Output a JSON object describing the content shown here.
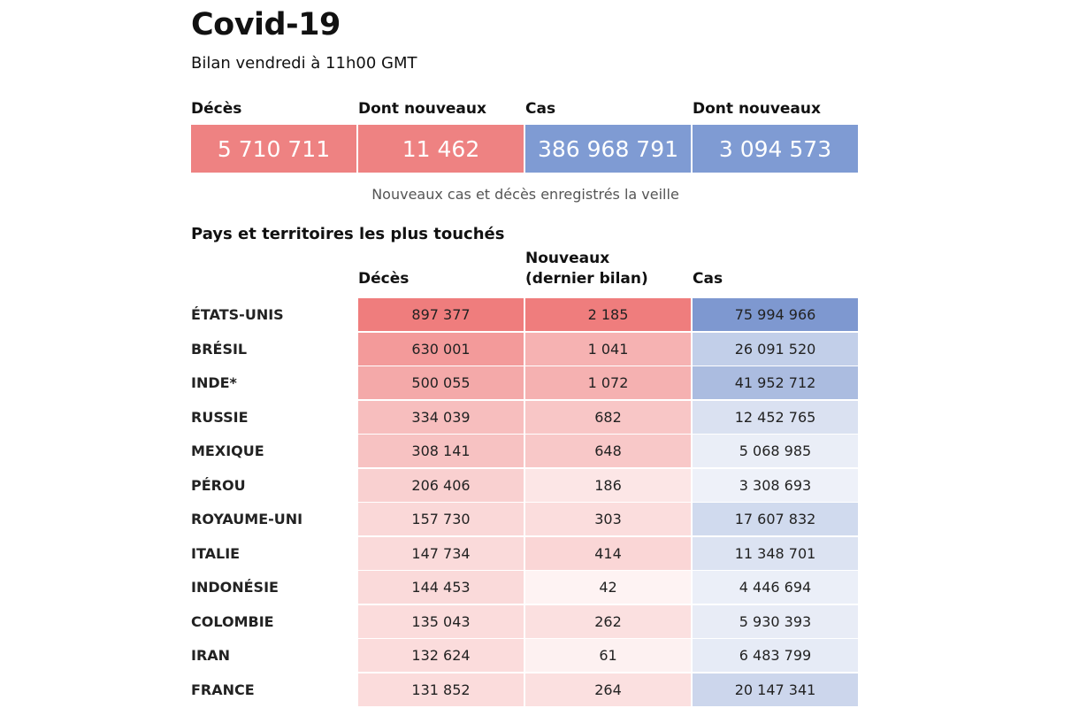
{
  "header": {
    "title": "Covid-19",
    "subtitle": "Bilan vendredi à 11h00 GMT"
  },
  "summary": {
    "labels": [
      "Décès",
      "Dont nouveaux",
      "Cas",
      "Dont nouveaux"
    ],
    "values": [
      "5 710 711",
      "11 462",
      "386 968 791",
      "3 094 573"
    ],
    "colors": [
      "#ee8282",
      "#ee8282",
      "#7f9bd3",
      "#7f9bd3"
    ],
    "note": "Nouveaux cas et décès enregistrés la veille"
  },
  "table": {
    "section_title": "Pays et territoires les plus touchés",
    "col_deaths": "Décès",
    "col_new_line1": "Nouveaux",
    "col_new_line2": "(dernier bilan)",
    "col_cases": "Cas",
    "rows": [
      {
        "country": "ÉTATS-UNIS",
        "deaths": "897 377",
        "new": "2 185",
        "cases": "75 994 966",
        "d": 897377,
        "n": 2185,
        "c": 75994966
      },
      {
        "country": "BRÉSIL",
        "deaths": "630 001",
        "new": "1 041",
        "cases": "26 091 520",
        "d": 630001,
        "n": 1041,
        "c": 26091520
      },
      {
        "country": "INDE*",
        "deaths": "500 055",
        "new": "1 072",
        "cases": "41 952 712",
        "d": 500055,
        "n": 1072,
        "c": 41952712
      },
      {
        "country": "RUSSIE",
        "deaths": "334 039",
        "new": "682",
        "cases": "12 452 765",
        "d": 334039,
        "n": 682,
        "c": 12452765
      },
      {
        "country": "MEXIQUE",
        "deaths": "308 141",
        "new": "648",
        "cases": "5 068 985",
        "d": 308141,
        "n": 648,
        "c": 5068985
      },
      {
        "country": "PÉROU",
        "deaths": "206 406",
        "new": "186",
        "cases": "3 308 693",
        "d": 206406,
        "n": 186,
        "c": 3308693
      },
      {
        "country": "ROYAUME-UNI",
        "deaths": "157 730",
        "new": "303",
        "cases": "17 607 832",
        "d": 157730,
        "n": 303,
        "c": 17607832
      },
      {
        "country": "ITALIE",
        "deaths": "147 734",
        "new": "414",
        "cases": "11 348 701",
        "d": 147734,
        "n": 414,
        "c": 11348701
      },
      {
        "country": "INDONÉSIE",
        "deaths": "144 453",
        "new": "42",
        "cases": "4 446 694",
        "d": 144453,
        "n": 42,
        "c": 4446694
      },
      {
        "country": "COLOMBIE",
        "deaths": "135 043",
        "new": "262",
        "cases": "5 930 393",
        "d": 135043,
        "n": 262,
        "c": 5930393
      },
      {
        "country": "IRAN",
        "deaths": "132 624",
        "new": "61",
        "cases": "6 483 799",
        "d": 132624,
        "n": 61,
        "c": 6483799
      },
      {
        "country": "FRANCE",
        "deaths": "131 852",
        "new": "264",
        "cases": "20 147 341",
        "d": 131852,
        "n": 264,
        "c": 20147341
      }
    ]
  },
  "colors": {
    "red_max": "#ef7d7d",
    "blue_max": "#7e98d0"
  }
}
